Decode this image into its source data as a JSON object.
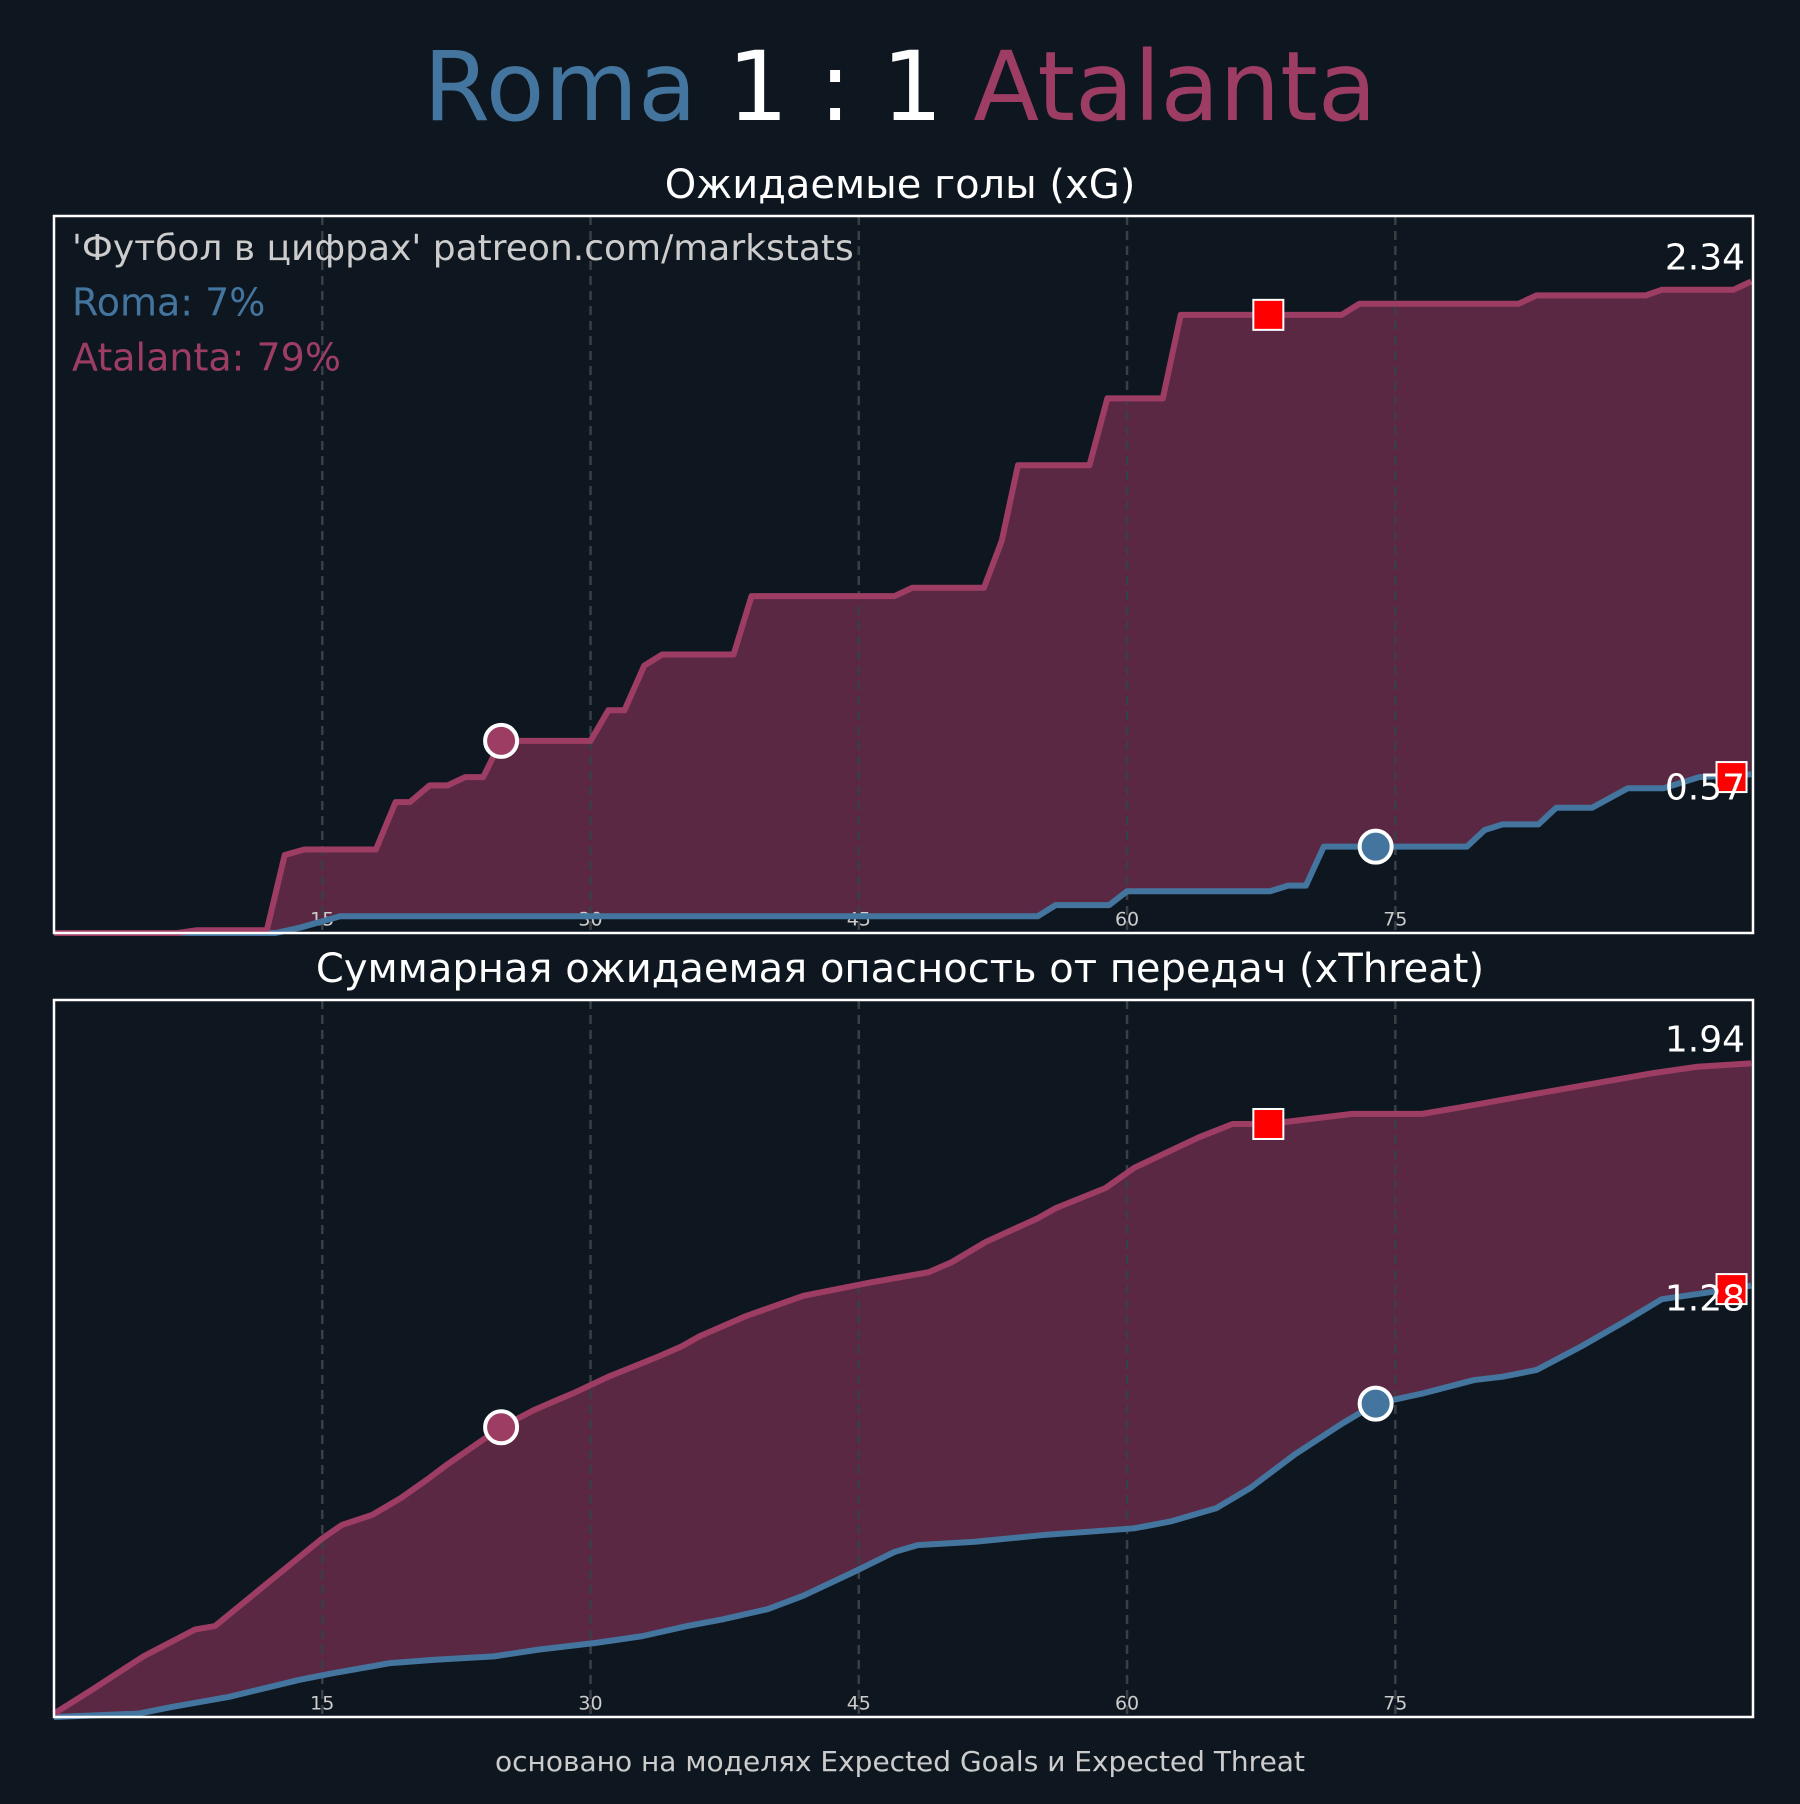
{
  "header": {
    "home": "Roma",
    "score": "1 : 1",
    "away": "Atalanta",
    "home_color": "#44759f",
    "away_color": "#9e3d64"
  },
  "chart_data": [
    {
      "type": "area-line",
      "title": "Ожидаемые голы (xG)",
      "annotation": "'Футбол в цифрах' patreon.com/markstats",
      "xlim": [
        0,
        95
      ],
      "ylim": [
        0,
        2.575
      ],
      "xticks": [
        15,
        30,
        45,
        60,
        75
      ],
      "grid": true,
      "series": [
        {
          "label": "Roma: 7%",
          "color": "#44759f",
          "area_color": "#0e1720",
          "end_value": 0.57,
          "x": [
            0,
            12.4,
            13.8,
            16,
            55,
            56,
            59,
            60,
            68,
            69,
            70,
            71,
            79,
            80,
            81,
            83,
            84,
            86,
            88,
            90,
            92,
            94.9
          ],
          "values": [
            0,
            0,
            0.02,
            0.06,
            0.06,
            0.1,
            0.1,
            0.15,
            0.15,
            0.17,
            0.17,
            0.31,
            0.31,
            0.37,
            0.39,
            0.39,
            0.45,
            0.45,
            0.52,
            0.52,
            0.56,
            0.57
          ]
        },
        {
          "label": "Atalanta: 79%",
          "color": "#9e3d64",
          "area_color": "#5a2842",
          "end_value": 2.34,
          "x": [
            0,
            6.9,
            8,
            11.9,
            12.9,
            14,
            18,
            19.1,
            19.9,
            21,
            22,
            23,
            24,
            25,
            30,
            31,
            31.9,
            33,
            34,
            38,
            39,
            47,
            48,
            52,
            53,
            53.9,
            57.9,
            58.9,
            62,
            63,
            72,
            73,
            81.9,
            82.9,
            89,
            89.9,
            93.9,
            94.9
          ],
          "values": [
            0,
            0,
            0.01,
            0.01,
            0.28,
            0.3,
            0.3,
            0.47,
            0.47,
            0.53,
            0.53,
            0.56,
            0.56,
            0.69,
            0.69,
            0.8,
            0.8,
            0.96,
            1.0,
            1.0,
            1.21,
            1.21,
            1.24,
            1.24,
            1.41,
            1.68,
            1.68,
            1.92,
            1.92,
            2.22,
            2.22,
            2.26,
            2.26,
            2.29,
            2.29,
            2.31,
            2.31,
            2.34
          ]
        }
      ],
      "markers": [
        {
          "shape": "circle",
          "color": "#9e3d64",
          "x": 25,
          "y": 0.69
        },
        {
          "shape": "circle",
          "color": "#44759f",
          "x": 73.9,
          "y": 0.31
        },
        {
          "shape": "square",
          "color": "#ff0000",
          "x": 67.9,
          "y": 2.22
        },
        {
          "shape": "square",
          "color": "#ff0000",
          "x": 93.8,
          "y": 0.56
        }
      ]
    },
    {
      "type": "area-line",
      "title": "Суммарная ожидаемая опасность от передач (xThreat)",
      "xlim": [
        0,
        95
      ],
      "ylim": [
        0,
        2.128
      ],
      "xticks": [
        15,
        30,
        45,
        60,
        75
      ],
      "grid": true,
      "series": [
        {
          "color": "#44759f",
          "area_color": "#0e1720",
          "end_value": 1.28,
          "x": [
            0,
            4.7,
            6.6,
            9.8,
            13.7,
            15.6,
            18.8,
            21.3,
            24.6,
            27.1,
            30.3,
            32.9,
            35.4,
            37.4,
            39.9,
            41.9,
            44.7,
            47,
            48.3,
            51.5,
            55.3,
            57.9,
            60.4,
            62.4,
            65,
            66.9,
            69.4,
            72,
            73.9,
            76.5,
            79.4,
            81,
            82.9,
            85.4,
            87.7,
            89.9,
            92.5,
            94.9
          ],
          "values": [
            0,
            0.01,
            0.03,
            0.06,
            0.11,
            0.13,
            0.16,
            0.17,
            0.18,
            0.2,
            0.22,
            0.24,
            0.27,
            0.29,
            0.32,
            0.36,
            0.43,
            0.49,
            0.51,
            0.52,
            0.54,
            0.55,
            0.56,
            0.58,
            0.62,
            0.68,
            0.78,
            0.87,
            0.93,
            0.96,
            1.0,
            1.01,
            1.03,
            1.1,
            1.17,
            1.24,
            1.26,
            1.28
          ]
        },
        {
          "color": "#9e3d64",
          "area_color": "#5a2842",
          "end_value": 1.94,
          "x": [
            0,
            2.1,
            5,
            7.9,
            9,
            12,
            15,
            16.1,
            17.8,
            19.4,
            21,
            22,
            25,
            26.8,
            28.1,
            29,
            31,
            33.8,
            35.1,
            36.1,
            38.7,
            41.9,
            45.7,
            48.9,
            50.2,
            52.1,
            55,
            56,
            58.8,
            60.4,
            62,
            64,
            65.9,
            67.9,
            72.6,
            76.5,
            78.7,
            82.9,
            86.1,
            89.3,
            91.9,
            94.9
          ],
          "values": [
            0.01,
            0.08,
            0.18,
            0.26,
            0.27,
            0.4,
            0.53,
            0.57,
            0.6,
            0.65,
            0.71,
            0.75,
            0.86,
            0.91,
            0.94,
            0.96,
            1.01,
            1.07,
            1.1,
            1.13,
            1.19,
            1.25,
            1.29,
            1.32,
            1.35,
            1.41,
            1.48,
            1.51,
            1.57,
            1.63,
            1.67,
            1.72,
            1.76,
            1.76,
            1.79,
            1.79,
            1.81,
            1.85,
            1.88,
            1.91,
            1.93,
            1.94
          ]
        }
      ],
      "markers": [
        {
          "shape": "circle",
          "color": "#9e3d64",
          "x": 25,
          "y": 0.86
        },
        {
          "shape": "circle",
          "color": "#44759f",
          "x": 73.9,
          "y": 0.93
        },
        {
          "shape": "square",
          "color": "#ff0000",
          "x": 67.9,
          "y": 1.76
        },
        {
          "shape": "square",
          "color": "#ff0000",
          "x": 93.8,
          "y": 1.27
        }
      ]
    }
  ],
  "footer": "основано на моделях Expected Goals и Expected Threat"
}
